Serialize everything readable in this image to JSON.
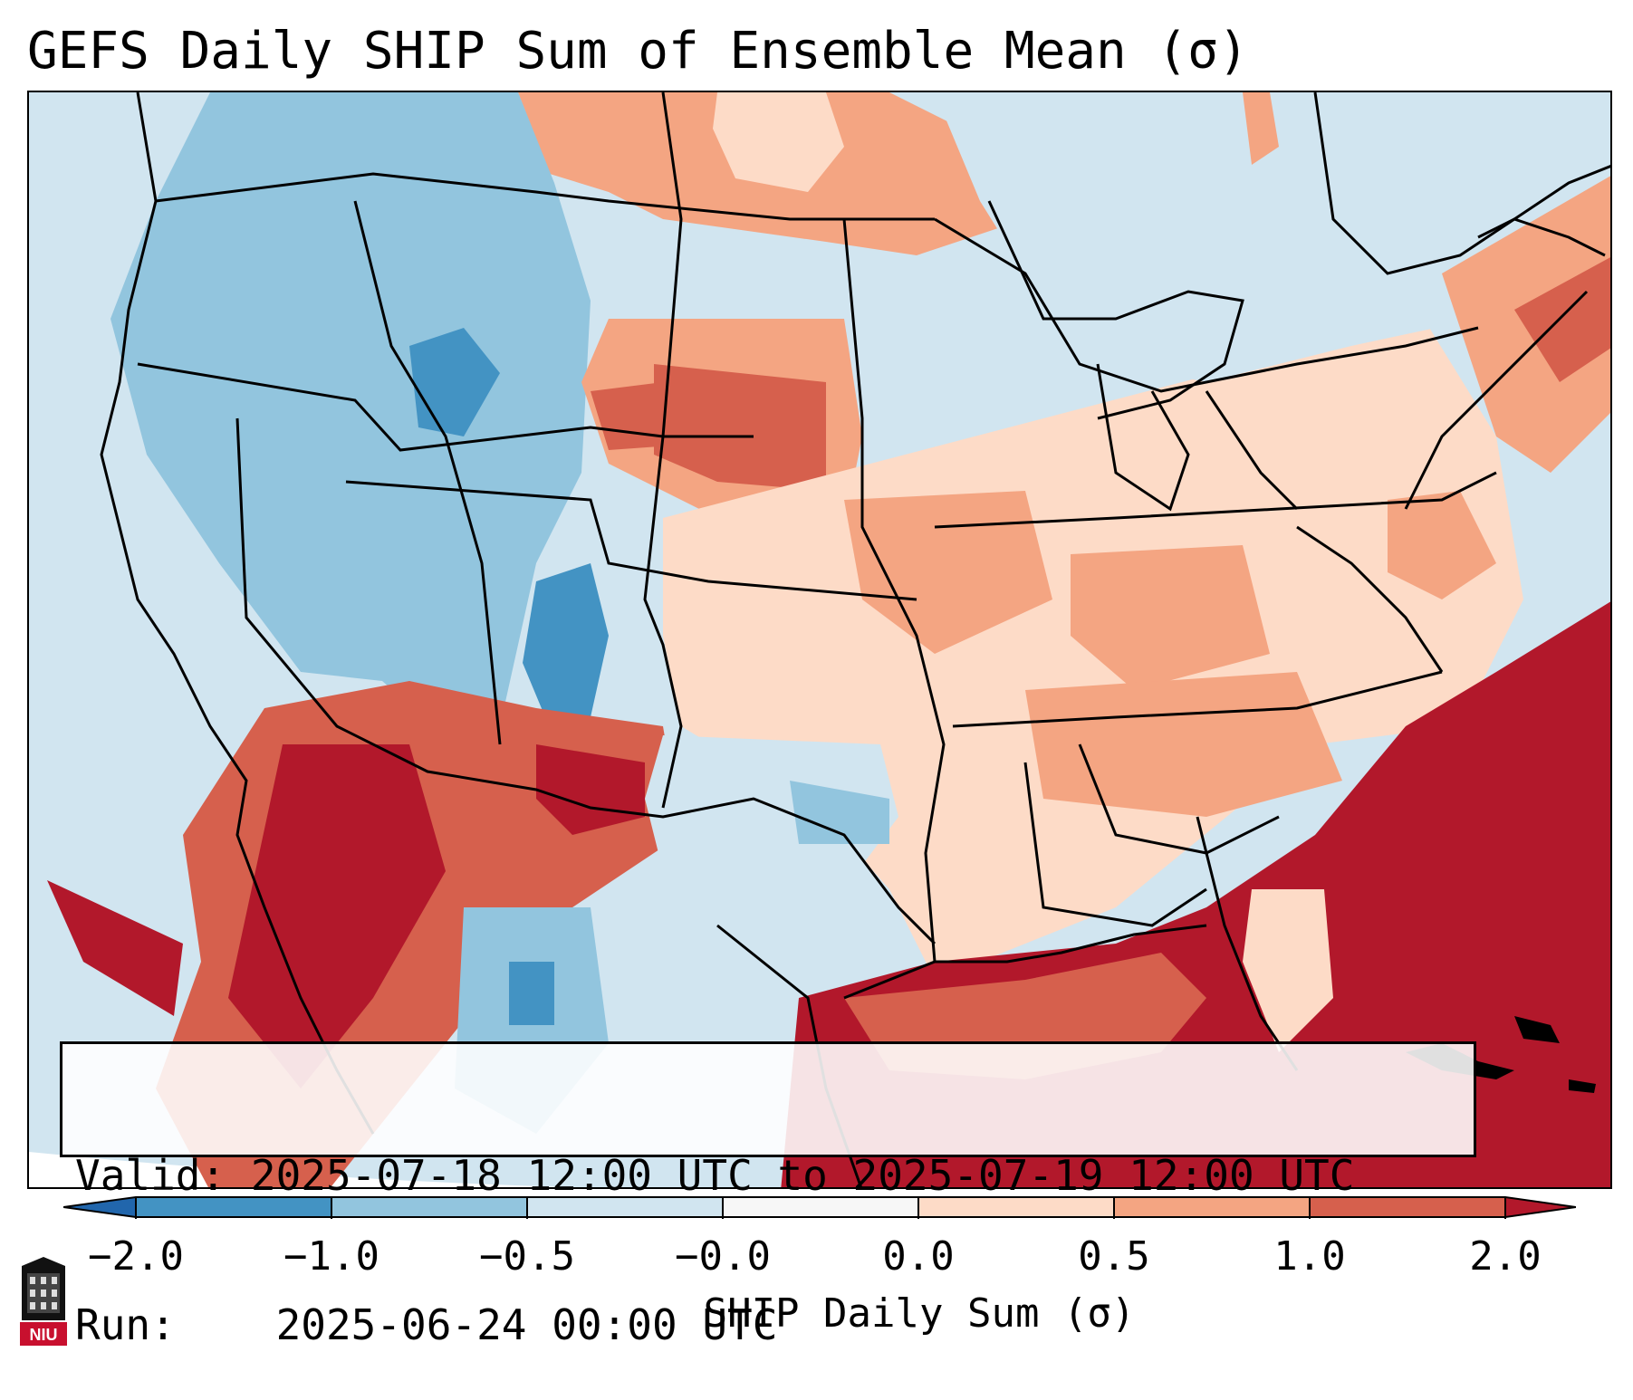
{
  "title": "GEFS Daily SHIP Sum of Ensemble Mean (σ)",
  "info": {
    "valid_label": "Valid:",
    "valid_value": "2025-07-18 12:00 UTC to 2025-07-19 12:00 UTC",
    "run_label": "Run:",
    "run_value": "2025-06-24 00:00 UTC"
  },
  "colorbar": {
    "label": "SHIP Daily Sum (σ)",
    "ticks": [
      "−2.0",
      "−1.0",
      "−0.5",
      "−0.0",
      "0.0",
      "0.5",
      "1.0",
      "2.0"
    ],
    "bins": [
      {
        "range": "< -2.0",
        "color": "#2166ac"
      },
      {
        "range": "-2.0 to -1.0",
        "color": "#4393c3"
      },
      {
        "range": "-1.0 to -0.5",
        "color": "#92c5de"
      },
      {
        "range": "-0.5 to -0.0",
        "color": "#d1e5f0"
      },
      {
        "range": "-0.0 to 0.0",
        "color": "#f7f7f7"
      },
      {
        "range": "0.0 to 0.5",
        "color": "#fddbc7"
      },
      {
        "range": "0.5 to 1.0",
        "color": "#f4a582"
      },
      {
        "range": "1.0 to 2.0",
        "color": "#d6604d"
      },
      {
        "range": "> 2.0",
        "color": "#b2182b"
      }
    ]
  },
  "logo_text": "NIU",
  "colors": {
    "land_outline": "#000000",
    "ocean_high": "#b2182b",
    "pacific_neutral": "#d1e5f0"
  }
}
